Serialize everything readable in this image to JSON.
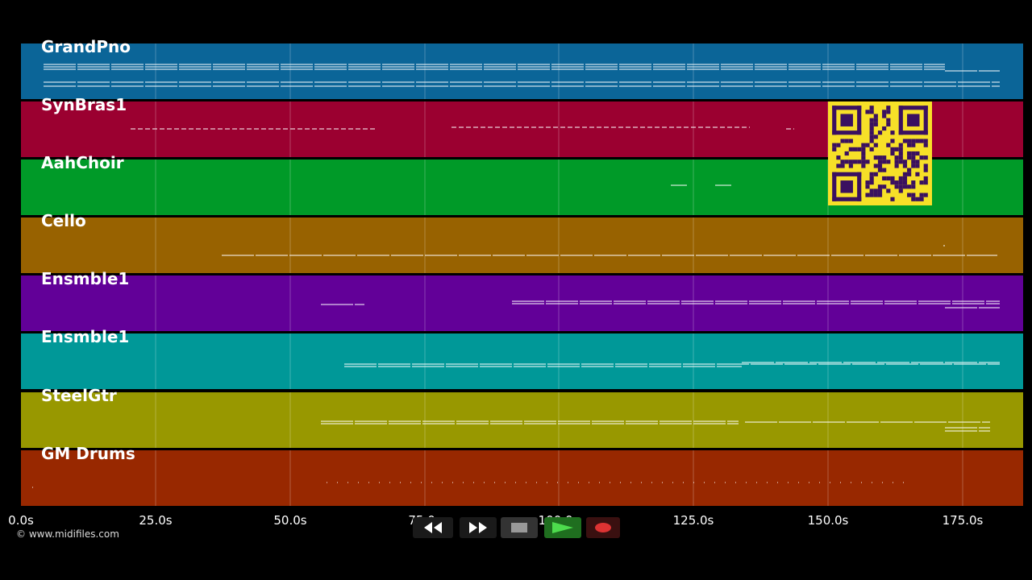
{
  "tracks": [
    {
      "name": "GrandPno",
      "color": "#0b6598"
    },
    {
      "name": "SynBras1",
      "color": "#9b0030"
    },
    {
      "name": "AahChoir",
      "color": "#009a28"
    },
    {
      "name": "Cello",
      "color": "#986200"
    },
    {
      "name": "Ensmble1",
      "color": "#620098"
    },
    {
      "name": "Ensmble1",
      "color": "#009898"
    },
    {
      "name": "SteelGtr",
      "color": "#989800"
    },
    {
      "name": "GM Drums",
      "color": "#982800"
    }
  ],
  "timeline": {
    "ticks": [
      "0.0s",
      "25.0s",
      "50.0s",
      "75.0s",
      "100.0s",
      "125.0s",
      "150.0s",
      "175.0s"
    ]
  },
  "copyright": "© www.midifiles.com",
  "transport": {
    "rewind": "rewind-icon",
    "forward": "fast-forward-icon",
    "stop": "stop-icon",
    "play": "play-icon",
    "record": "record-icon"
  },
  "qr_code": "qr-code"
}
